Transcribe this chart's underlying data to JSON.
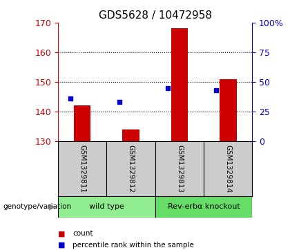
{
  "title": "GDS5628 / 10472958",
  "samples": [
    "GSM1329811",
    "GSM1329812",
    "GSM1329813",
    "GSM1329814"
  ],
  "counts": [
    142,
    134,
    168,
    151
  ],
  "percentile_ranks": [
    36,
    33,
    45,
    43
  ],
  "y_min": 130,
  "y_max": 170,
  "y_ticks": [
    130,
    140,
    150,
    160,
    170
  ],
  "y2_ticks": [
    0,
    25,
    50,
    75,
    100
  ],
  "groups": [
    {
      "label": "wild type",
      "samples": [
        0,
        1
      ],
      "color": "#90EE90"
    },
    {
      "label": "Rev-erbα knockout",
      "samples": [
        2,
        3
      ],
      "color": "#66DD66"
    }
  ],
  "bar_color": "#CC0000",
  "dot_color": "#0000CC",
  "bar_width": 0.35,
  "background_color": "#ffffff",
  "label_row_color": "#cccccc",
  "legend_items": [
    {
      "color": "#CC0000",
      "label": "count"
    },
    {
      "color": "#0000CC",
      "label": "percentile rank within the sample"
    }
  ]
}
